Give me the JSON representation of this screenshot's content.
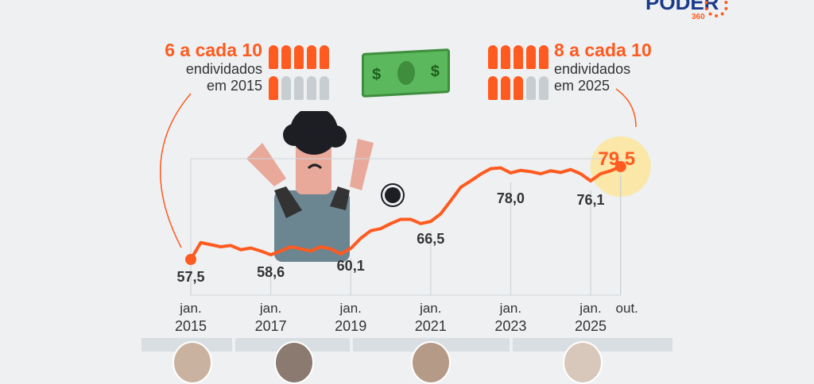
{
  "logo": {
    "text": "PODER",
    "sub": "360"
  },
  "left_note": {
    "headline": "6 a cada 10",
    "line1": "endividados",
    "line2": "em 2015",
    "filled": 6,
    "total": 10
  },
  "right_note": {
    "headline": "8 a cada 10",
    "line1": "endividados",
    "line2": "em 2025",
    "filled": 8,
    "total": 10
  },
  "colors": {
    "accent": "#ff5a1f",
    "highlight": "#fbe7a8",
    "bar": "#d8dee2"
  },
  "chart_data": {
    "type": "line",
    "title": "",
    "x_start": "2015-01",
    "frequency": "quarterly",
    "values": [
      57.5,
      61.5,
      61,
      60.5,
      60.8,
      59.8,
      60.2,
      59.5,
      58.6,
      59.5,
      60.5,
      60,
      59.5,
      60.5,
      60,
      58.8,
      60.1,
      62.5,
      64.3,
      64.8,
      66,
      67,
      67,
      66,
      66.5,
      68.3,
      71.4,
      74.6,
      76.1,
      77.7,
      79,
      79.2,
      78,
      78.6,
      78.3,
      77.8,
      78.5,
      78.1,
      78.8,
      77.8,
      76.1,
      77.8,
      78.5,
      79.5
    ],
    "ylim": [
      55,
      82
    ],
    "data_labels": [
      {
        "index": 0,
        "text": "57,5"
      },
      {
        "index": 8,
        "text": "58,6"
      },
      {
        "index": 16,
        "text": "60,1"
      },
      {
        "index": 24,
        "text": "66,5"
      },
      {
        "index": 32,
        "text": "78,0"
      },
      {
        "index": 40,
        "text": "76,1"
      },
      {
        "index": 43,
        "text": "79,5"
      }
    ],
    "ticks": [
      {
        "index": 0,
        "l1": "jan.",
        "l2": "2015"
      },
      {
        "index": 8,
        "l1": "jan.",
        "l2": "2017"
      },
      {
        "index": 16,
        "l1": "jan.",
        "l2": "2019"
      },
      {
        "index": 24,
        "l1": "jan.",
        "l2": "2021"
      },
      {
        "index": 32,
        "l1": "jan.",
        "l2": "2023"
      },
      {
        "index": 40,
        "l1": "jan.",
        "l2": "2025"
      },
      {
        "index": 43,
        "l1": "out.",
        "l2": ""
      }
    ]
  }
}
